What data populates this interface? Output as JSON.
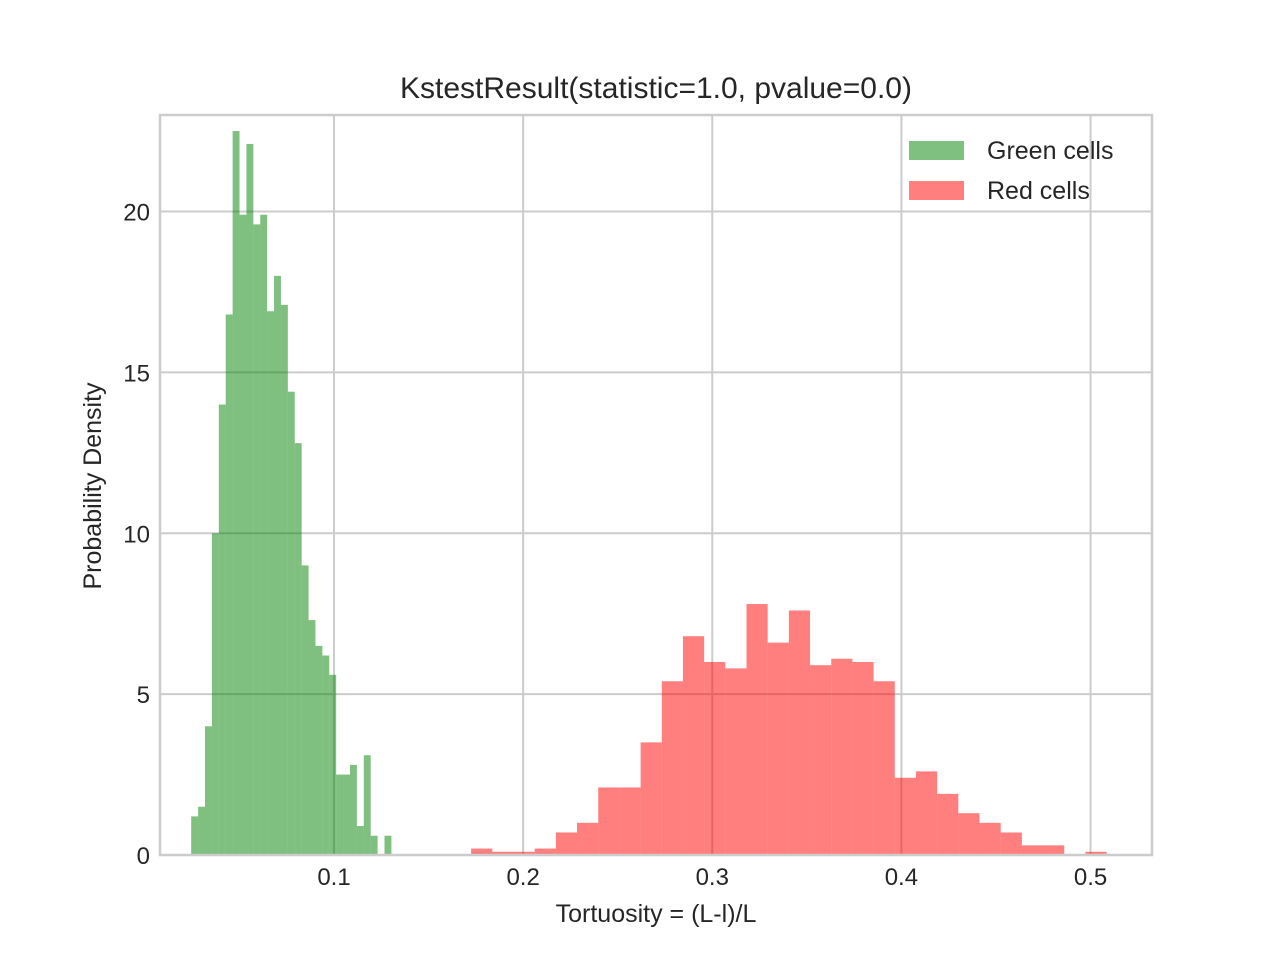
{
  "chart_data": {
    "type": "bar",
    "subtype": "histogram",
    "title": "KstestResult(statistic=1.0, pvalue=0.0)",
    "xlabel": "Tortuosity = (L-l)/L",
    "ylabel": "Probability Density",
    "xlim": [
      0.008,
      0.5325
    ],
    "ylim": [
      0,
      23
    ],
    "xticks": [
      0.1,
      0.2,
      0.3,
      0.4,
      0.5
    ],
    "xtick_labels": [
      "0.1",
      "0.2",
      "0.3",
      "0.4",
      "0.5"
    ],
    "yticks": [
      0,
      5,
      10,
      15,
      20
    ],
    "ytick_labels": [
      "0",
      "5",
      "10",
      "15",
      "20"
    ],
    "grid": true,
    "legend_position": "top-right",
    "series": [
      {
        "name": "Green cells",
        "color": "#008000",
        "opacity": 0.5,
        "bin_start": 0.0245,
        "bin_width": 0.00365,
        "values": [
          1.2,
          1.5,
          4.0,
          10.0,
          14.0,
          16.8,
          22.5,
          19.9,
          22.1,
          19.6,
          19.9,
          16.9,
          18.0,
          17.1,
          14.4,
          12.8,
          9.0,
          7.3,
          6.5,
          6.2,
          5.6,
          2.5,
          2.5,
          2.8,
          0.9,
          3.1,
          0.6,
          0.0,
          0.6
        ]
      },
      {
        "name": "Red cells",
        "color": "#ff0000",
        "opacity": 0.5,
        "bin_start": 0.1725,
        "bin_width": 0.0112,
        "values": [
          0.2,
          0.1,
          0.1,
          0.2,
          0.7,
          1.0,
          2.1,
          2.1,
          3.5,
          5.4,
          6.8,
          6.0,
          5.8,
          7.8,
          6.6,
          7.6,
          5.9,
          6.1,
          6.0,
          5.4,
          2.4,
          2.6,
          1.9,
          1.3,
          1.0,
          0.7,
          0.3,
          0.3,
          0.0,
          0.1
        ]
      }
    ]
  }
}
